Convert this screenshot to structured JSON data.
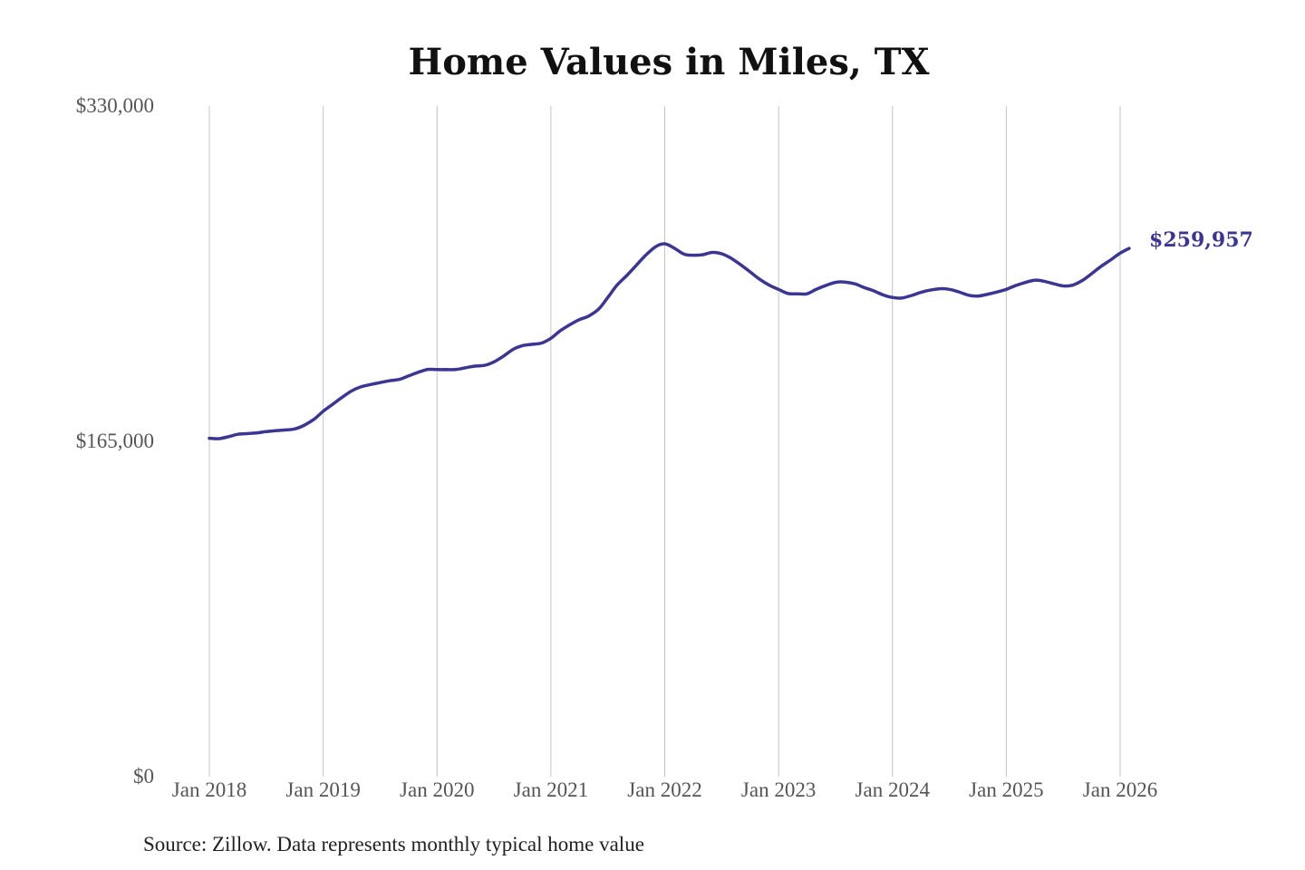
{
  "chart_data": {
    "type": "line",
    "title": "Home Values in Miles, TX",
    "source": "Source: Zillow. Data represents monthly typical home value",
    "xlabel": "",
    "ylabel": "",
    "ylim": [
      0,
      330000
    ],
    "y_ticks": [
      {
        "value": 0,
        "label": "$0"
      },
      {
        "value": 165000,
        "label": "$165,000"
      },
      {
        "value": 330000,
        "label": "$330,000"
      }
    ],
    "x_ticks": [
      {
        "value": 2018.0,
        "label": "Jan 2018"
      },
      {
        "value": 2019.0,
        "label": "Jan 2019"
      },
      {
        "value": 2020.0,
        "label": "Jan 2020"
      },
      {
        "value": 2021.0,
        "label": "Jan 2021"
      },
      {
        "value": 2022.0,
        "label": "Jan 2022"
      },
      {
        "value": 2023.0,
        "label": "Jan 2023"
      },
      {
        "value": 2024.0,
        "label": "Jan 2024"
      },
      {
        "value": 2025.0,
        "label": "Jan 2025"
      },
      {
        "value": 2026.0,
        "label": "Jan 2026"
      }
    ],
    "grid": {
      "vertical": true,
      "horizontal": false
    },
    "end_label": "$259,957",
    "series": [
      {
        "color": "#3b3593",
        "points": [
          [
            2018.0,
            166500
          ],
          [
            2018.08,
            166300
          ],
          [
            2018.17,
            167300
          ],
          [
            2018.25,
            168500
          ],
          [
            2018.33,
            168800
          ],
          [
            2018.42,
            169200
          ],
          [
            2018.5,
            169800
          ],
          [
            2018.58,
            170200
          ],
          [
            2018.67,
            170600
          ],
          [
            2018.75,
            171100
          ],
          [
            2018.83,
            172800
          ],
          [
            2018.92,
            175900
          ],
          [
            2019.0,
            179800
          ],
          [
            2019.08,
            183100
          ],
          [
            2019.17,
            186800
          ],
          [
            2019.25,
            189800
          ],
          [
            2019.33,
            191800
          ],
          [
            2019.42,
            193000
          ],
          [
            2019.5,
            193900
          ],
          [
            2019.58,
            194800
          ],
          [
            2019.67,
            195500
          ],
          [
            2019.75,
            197200
          ],
          [
            2019.83,
            198900
          ],
          [
            2019.92,
            200400
          ],
          [
            2020.0,
            200300
          ],
          [
            2020.08,
            200300
          ],
          [
            2020.17,
            200400
          ],
          [
            2020.25,
            201200
          ],
          [
            2020.33,
            202000
          ],
          [
            2020.42,
            202400
          ],
          [
            2020.5,
            204100
          ],
          [
            2020.58,
            206800
          ],
          [
            2020.67,
            210300
          ],
          [
            2020.75,
            212100
          ],
          [
            2020.83,
            212700
          ],
          [
            2020.92,
            213400
          ],
          [
            2021.0,
            215700
          ],
          [
            2021.08,
            219300
          ],
          [
            2021.17,
            222500
          ],
          [
            2021.25,
            224900
          ],
          [
            2021.33,
            226600
          ],
          [
            2021.42,
            230100
          ],
          [
            2021.5,
            235800
          ],
          [
            2021.58,
            241800
          ],
          [
            2021.67,
            246800
          ],
          [
            2021.75,
            251600
          ],
          [
            2021.83,
            256400
          ],
          [
            2021.92,
            260800
          ],
          [
            2022.0,
            262200
          ],
          [
            2022.08,
            260200
          ],
          [
            2022.17,
            257100
          ],
          [
            2022.25,
            256600
          ],
          [
            2022.33,
            256800
          ],
          [
            2022.42,
            258000
          ],
          [
            2022.5,
            257300
          ],
          [
            2022.58,
            255200
          ],
          [
            2022.67,
            251800
          ],
          [
            2022.75,
            248400
          ],
          [
            2022.83,
            244900
          ],
          [
            2022.92,
            241800
          ],
          [
            2023.0,
            239800
          ],
          [
            2023.08,
            237800
          ],
          [
            2023.17,
            237600
          ],
          [
            2023.25,
            237600
          ],
          [
            2023.33,
            239800
          ],
          [
            2023.42,
            241800
          ],
          [
            2023.5,
            243200
          ],
          [
            2023.58,
            243400
          ],
          [
            2023.67,
            242500
          ],
          [
            2023.75,
            240700
          ],
          [
            2023.83,
            239200
          ],
          [
            2023.92,
            237000
          ],
          [
            2024.0,
            235800
          ],
          [
            2024.08,
            235500
          ],
          [
            2024.17,
            236800
          ],
          [
            2024.25,
            238300
          ],
          [
            2024.33,
            239400
          ],
          [
            2024.42,
            240100
          ],
          [
            2024.5,
            239800
          ],
          [
            2024.58,
            238600
          ],
          [
            2024.67,
            236900
          ],
          [
            2024.75,
            236500
          ],
          [
            2024.83,
            237300
          ],
          [
            2024.92,
            238500
          ],
          [
            2025.0,
            239800
          ],
          [
            2025.08,
            241600
          ],
          [
            2025.17,
            243200
          ],
          [
            2025.25,
            244300
          ],
          [
            2025.33,
            243800
          ],
          [
            2025.42,
            242500
          ],
          [
            2025.5,
            241500
          ],
          [
            2025.58,
            241800
          ],
          [
            2025.67,
            244200
          ],
          [
            2025.75,
            247500
          ],
          [
            2025.83,
            251000
          ],
          [
            2025.92,
            254400
          ],
          [
            2026.0,
            257600
          ],
          [
            2026.08,
            259957
          ]
        ]
      }
    ]
  }
}
